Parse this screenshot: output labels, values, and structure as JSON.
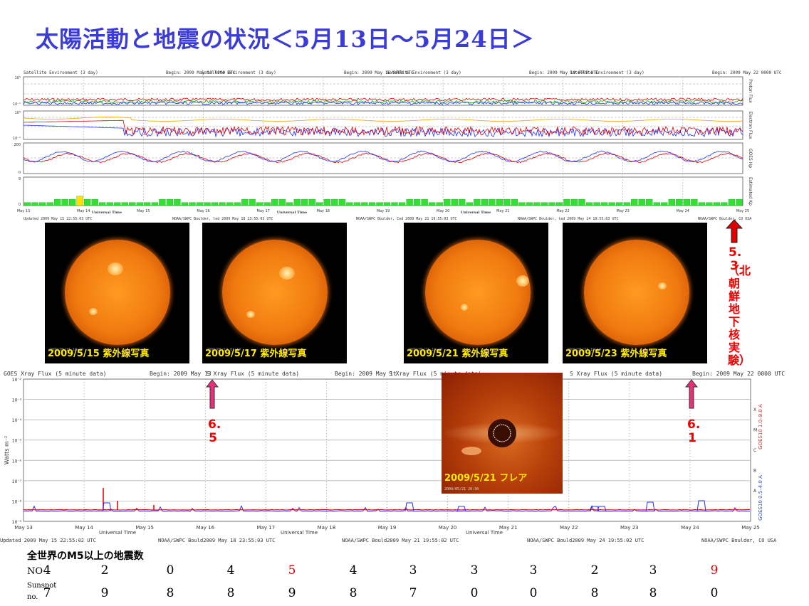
{
  "title": "太陽活動と地震の状況＜5月13日～5月24日＞",
  "env_chart": {
    "header_left": "Satellite Environment (3 day)",
    "headers": [
      {
        "label": "Satellite Environment (3 day)",
        "begin": "Begin:  2009 May 13 0000 UTC"
      },
      {
        "label": "Satellite Environment (3 day)",
        "begin": "Begin:  2009 May 16 0000 UTC"
      },
      {
        "label": "Satellite Environment (3 day)",
        "begin": "Begin:  2009 May 19 0000 UTC"
      },
      {
        "label": "Satellite Environment (3 day)",
        "begin": "Begin:  2009 May 22 0000 UTC"
      }
    ],
    "right_labels": [
      "Proton Flux",
      "Electron Flux",
      "GOES Hp",
      "Estimated Kp"
    ],
    "axis_labels": [
      "10⁵",
      "10⁻¹",
      "10⁶",
      "10⁻¹",
      "200",
      "0",
      "9",
      "0"
    ],
    "day_ticks": [
      "May 13",
      "May 14",
      "May 15",
      "May 16",
      "May 17",
      "May 18",
      "May 19",
      "May 20",
      "May 21",
      "May 22",
      "May 23",
      "May 24",
      "May 25"
    ],
    "universal_time": "Universal Time",
    "footers": [
      "Updated  2009 May 15 22:55:03 UTC",
      "NOAA/SWPC Boulder, led 2009 May 18 23:55:03 UTC",
      "NOAA/SWPC Boulder, Ced 2009 May 21 19:55:03 UTC",
      "NOAA/SWPC Boulder, ted 2009 May 24 19:55:03 UTC",
      "NOAA/SWPC Boulder, CO USA"
    ]
  },
  "chart_data": {
    "type": "bar",
    "title": "Estimated Kp",
    "categories": [
      "May 13",
      "May 14",
      "May 15",
      "May 16",
      "May 17",
      "May 18",
      "May 19",
      "May 20",
      "May 21",
      "May 22",
      "May 23",
      "May 24"
    ],
    "kp_values": [
      1,
      1,
      1,
      1,
      2,
      2,
      2,
      3,
      2,
      2,
      1,
      1,
      1,
      1,
      1,
      1,
      1,
      1,
      2,
      2,
      2,
      1,
      1,
      1,
      1,
      1,
      1,
      1,
      1,
      2,
      2,
      1,
      1,
      2,
      2,
      1,
      2,
      2,
      2,
      1,
      2,
      2,
      2,
      1,
      1,
      1,
      1,
      1,
      1,
      1,
      1,
      2,
      2,
      2,
      1,
      1,
      2,
      2,
      2,
      1,
      2,
      2,
      2,
      2,
      2,
      2,
      1,
      1,
      1,
      1,
      1,
      1,
      2,
      2,
      2,
      1,
      1,
      1,
      1,
      1,
      1,
      2,
      2,
      2,
      1,
      1,
      2,
      2,
      2,
      2,
      1,
      1,
      1,
      1,
      2,
      2
    ],
    "kp_highlight_index": 7,
    "ylim": [
      0,
      9
    ]
  },
  "photos": [
    {
      "caption": "2009/5/15 紫外線写真",
      "stamp": "2009/05/15 18:19"
    },
    {
      "caption": "2009/5/17 紫外線写真",
      "stamp": "2009/05/17 01:19"
    },
    {
      "caption": "2009/5/21 紫外線写真",
      "stamp": "2009/05/21 19:19"
    },
    {
      "caption": "2009/5/23 紫外線写真",
      "stamp": "2009/05/23 18:19"
    }
  ],
  "nk_annotation": {
    "magnitude": "5.3",
    "text": "（北朝鮮地下核実験）"
  },
  "xray_chart": {
    "headers": [
      "GOES Xray Flux (5 minute data)",
      "S Xray Flux (5 minute data)",
      "S Xray Flux (5 minute data)",
      "S Xray Flux (5 minute data)"
    ],
    "begins": [
      "Begin:  2009 May 13",
      "Begin:  2009 May 1t",
      "Begin:  2009 May 22 0000 UTC"
    ],
    "ylabel": "Watts m⁻²",
    "y_ticks": [
      "10⁻²",
      "10⁻³",
      "10⁻⁴",
      "10⁻⁵",
      "10⁻⁶",
      "10⁻⁷",
      "10⁻⁸",
      "10⁻⁹"
    ],
    "classes": [
      "X",
      "M",
      "C",
      "B",
      "A"
    ],
    "right_label_a": "GOES10 1.0–8.0 A",
    "right_label_b": "GOES10 0.5–4.0 A",
    "day_ticks": [
      "May 13",
      "May 14",
      "May 15",
      "May 16",
      "May 17",
      "May 18",
      "May 19",
      "May 20",
      "May 21",
      "May 22",
      "May 23",
      "May 24",
      "May 25"
    ],
    "universal_time": "Universal Time",
    "footers": [
      "Updated 2009 May 15 22:55:02 UTC",
      "NOAA/SWPC Bould2009 May 18 23:55:03 UTC",
      "NOAA/SWPC Bould2009 May 21 19:55:02 UTC",
      "NOAA/SWPC Bould2009 May 24 19:55:02 UTC",
      "NOAA/SWPC Boulder, CO USA"
    ]
  },
  "quake_markers": [
    {
      "magnitude": "6.5"
    },
    {
      "magnitude": "6.1"
    }
  ],
  "flare_photo": {
    "caption": "2009/5/21 フレア",
    "stamp": "2009/05/21 20:30"
  },
  "quake_table": {
    "title": "全世界のM5以上の地震数",
    "row1_label": "NO",
    "row2_label_a": "Sunspot",
    "row2_label_b": "no.",
    "no_values": [
      "4",
      "2",
      "0",
      "4",
      "5",
      "4",
      "3",
      "3",
      "3",
      "2",
      "3",
      "9"
    ],
    "no_red_indices": [
      4,
      11
    ],
    "sunspot_values": [
      "7",
      "9",
      "8",
      "8",
      "9",
      "8",
      "7",
      "0",
      "0",
      "8",
      "8",
      "0"
    ]
  },
  "colors": {
    "title": "#3b3bd6",
    "red": "#e00000",
    "pink": "#e8307a",
    "kp_green": "#33e033",
    "kp_yellow": "#ffe000",
    "grid": "#888888"
  }
}
